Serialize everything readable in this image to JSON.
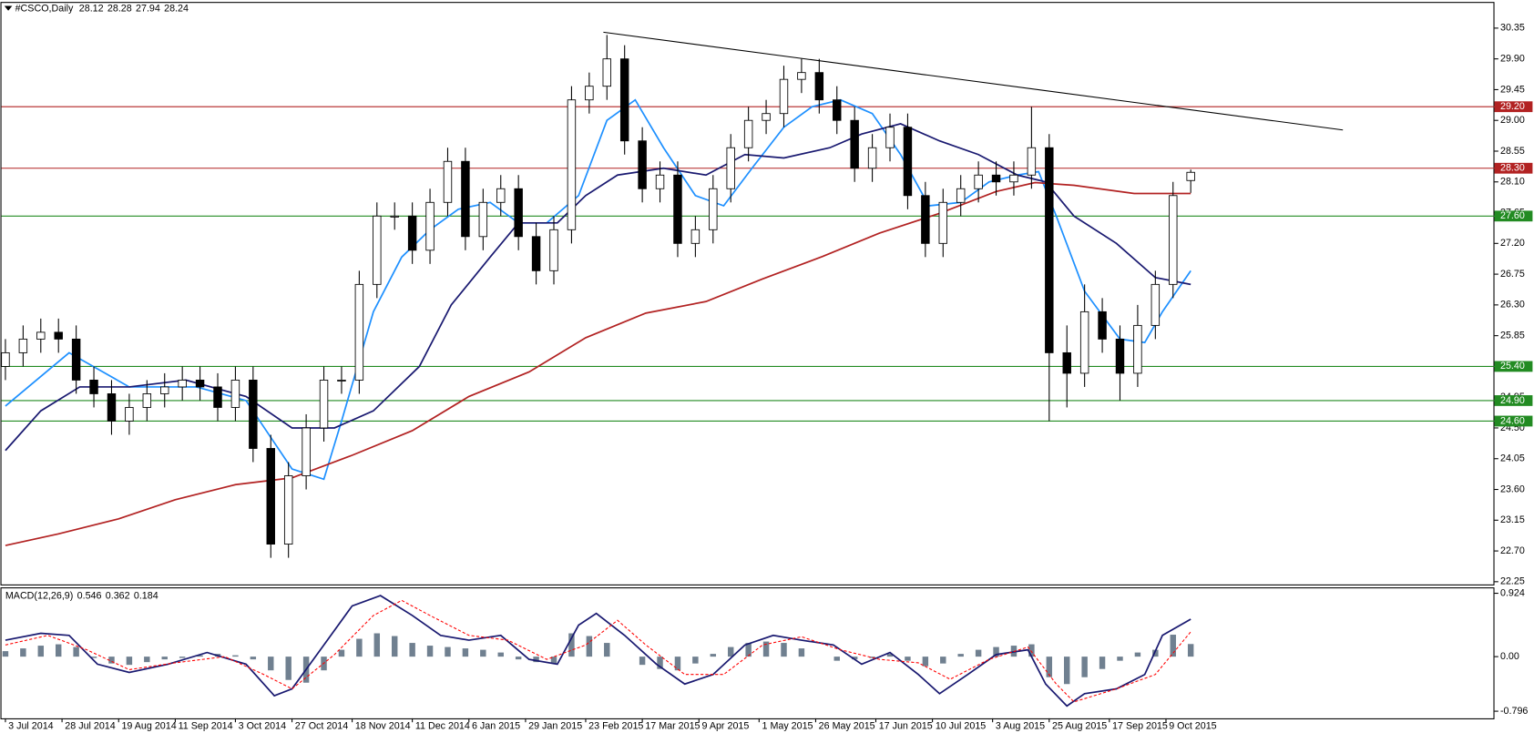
{
  "chart_data": [
    {
      "type": "candlestick",
      "title": "#CSCO,Daily",
      "xlim": [
        -1.4,
        420
      ],
      "ylim": [
        22.21,
        30.69
      ],
      "yticks": [
        30.35,
        {
          "value": 29.9,
          "label": "29.90"
        },
        29.45,
        {
          "value": 29,
          "label": "29.00"
        },
        28.55,
        {
          "value": 28.1,
          "label": "28.10"
        },
        27.65,
        {
          "value": 27.2,
          "label": "27.20"
        },
        26.75,
        {
          "value": 26.3,
          "label": "26.30"
        },
        25.85,
        {
          "value": 25.4,
          "label": "25.40"
        },
        24.95,
        {
          "value": 24.5,
          "label": "24.50"
        },
        24.05,
        {
          "value": 23.6,
          "label": "23.60"
        },
        23.15,
        {
          "value": 22.7,
          "label": "22.70"
        },
        22.25
      ],
      "x": [
        0,
        5,
        10,
        15,
        20,
        25,
        30,
        35,
        40,
        45,
        50,
        55,
        60,
        65,
        70,
        75,
        80,
        85,
        90,
        95,
        100,
        105,
        110,
        115,
        120,
        125,
        130,
        135,
        140,
        145,
        150,
        155,
        160,
        165,
        170,
        175,
        180,
        185,
        190,
        195,
        200,
        205,
        210,
        215,
        220,
        225,
        230,
        235,
        240,
        245,
        250,
        255,
        260,
        265,
        270,
        275,
        280,
        285,
        290,
        295,
        300,
        305,
        310,
        315,
        320,
        325,
        330,
        335
      ],
      "open": [
        25.4,
        25.6,
        25.8,
        25.9,
        25.8,
        25.2,
        25.0,
        24.6,
        24.8,
        25.0,
        25.1,
        25.2,
        25.1,
        24.8,
        25.2,
        24.2,
        22.8,
        23.8,
        24.5,
        25.2,
        25.2,
        26.6,
        27.6,
        27.6,
        27.1,
        27.8,
        28.4,
        27.3,
        27.8,
        28.0,
        27.3,
        26.8,
        27.4,
        29.3,
        29.5,
        29.9,
        28.7,
        28.0,
        28.2,
        27.2,
        27.4,
        28.0,
        28.6,
        29.0,
        29.1,
        29.6,
        29.7,
        29.3,
        29.0,
        28.3,
        28.6,
        28.9,
        27.9,
        27.2,
        27.8,
        28.0,
        28.2,
        28.1,
        28.2,
        28.6,
        25.6,
        25.3,
        26.2,
        25.8,
        25.3,
        26.0,
        26.6,
        28.12
      ],
      "high": [
        25.8,
        26.0,
        26.1,
        26.1,
        26.0,
        25.4,
        25.2,
        25.0,
        25.2,
        25.3,
        25.4,
        25.4,
        25.3,
        25.4,
        25.4,
        24.4,
        24.0,
        24.7,
        25.4,
        25.4,
        26.8,
        27.8,
        27.8,
        27.8,
        28.0,
        28.6,
        28.6,
        28.0,
        28.2,
        28.2,
        27.5,
        27.6,
        29.5,
        29.7,
        30.25,
        30.1,
        28.9,
        28.4,
        28.4,
        27.6,
        28.2,
        28.8,
        29.2,
        29.3,
        29.8,
        29.9,
        29.9,
        29.5,
        29.2,
        28.8,
        29.1,
        29.1,
        28.1,
        28.0,
        28.2,
        28.4,
        28.4,
        28.4,
        29.2,
        28.8,
        26.0,
        26.6,
        26.4,
        26.0,
        26.3,
        26.8,
        28.1,
        28.28
      ],
      "low": [
        25.2,
        25.4,
        25.6,
        25.6,
        25.0,
        24.8,
        24.4,
        24.4,
        24.6,
        24.8,
        24.9,
        24.9,
        24.6,
        24.6,
        24.0,
        22.6,
        22.6,
        23.6,
        24.3,
        25.0,
        25.0,
        26.4,
        27.4,
        26.9,
        26.9,
        27.6,
        27.1,
        27.1,
        27.6,
        27.1,
        26.6,
        26.6,
        27.2,
        29.1,
        29.3,
        28.5,
        27.8,
        27.8,
        27.0,
        27.0,
        27.2,
        27.8,
        28.4,
        28.8,
        28.9,
        29.4,
        29.1,
        28.8,
        28.1,
        28.1,
        28.4,
        27.7,
        27.0,
        27.0,
        27.6,
        27.8,
        27.9,
        27.9,
        28.0,
        24.6,
        24.8,
        25.1,
        25.6,
        24.9,
        25.1,
        25.8,
        26.4,
        27.94
      ],
      "close": [
        25.6,
        25.8,
        25.9,
        25.8,
        25.2,
        25.0,
        24.6,
        24.8,
        25.0,
        25.1,
        25.2,
        25.1,
        24.8,
        25.2,
        24.2,
        22.8,
        23.8,
        24.5,
        25.2,
        25.2,
        26.6,
        27.6,
        27.6,
        27.1,
        27.8,
        28.4,
        27.3,
        27.8,
        28.0,
        27.3,
        26.8,
        27.4,
        29.3,
        29.5,
        29.9,
        28.7,
        28.0,
        28.2,
        27.2,
        27.4,
        28.0,
        28.6,
        29.0,
        29.1,
        29.6,
        29.7,
        29.3,
        29.0,
        28.3,
        28.6,
        28.9,
        27.9,
        27.2,
        27.8,
        28.0,
        28.2,
        28.1,
        28.2,
        28.6,
        25.6,
        25.3,
        26.2,
        25.8,
        25.3,
        26.0,
        26.6,
        27.9,
        28.24
      ],
      "series": [
        {
          "color": "#1e90ff",
          "x": [
            0,
            18,
            35,
            54,
            68,
            81,
            90,
            95,
            104,
            112,
            120,
            128,
            137,
            145,
            153,
            162,
            170,
            178,
            186,
            195,
            203,
            211,
            220,
            228,
            236,
            245,
            253,
            261,
            270,
            278,
            286,
            292,
            297,
            305,
            315,
            322,
            327,
            335
          ],
          "values": [
            24.82,
            25.6,
            25.1,
            25.1,
            24.9,
            23.9,
            23.75,
            24.6,
            26.2,
            27.0,
            27.4,
            27.7,
            27.8,
            27.5,
            27.5,
            27.9,
            29.0,
            29.3,
            28.6,
            27.9,
            27.75,
            28.3,
            28.9,
            29.2,
            29.3,
            29.1,
            28.5,
            27.75,
            27.8,
            28.1,
            28.2,
            28.25,
            27.6,
            26.5,
            25.8,
            25.75,
            26.2,
            26.8
          ]
        },
        {
          "color": "#191970",
          "x": [
            0,
            10,
            21,
            35,
            51,
            68,
            81,
            93,
            104,
            117,
            126,
            137,
            145,
            156,
            164,
            173,
            186,
            198,
            209,
            220,
            233,
            242,
            253,
            264,
            275,
            286,
            294,
            302,
            314,
            325,
            335
          ],
          "values": [
            24.17,
            24.75,
            25.1,
            25.1,
            25.2,
            24.96,
            24.5,
            24.5,
            24.75,
            25.4,
            26.3,
            27.0,
            27.5,
            27.5,
            27.9,
            28.2,
            28.3,
            28.2,
            28.5,
            28.45,
            28.6,
            28.8,
            28.95,
            28.7,
            28.5,
            28.2,
            28.1,
            27.6,
            27.2,
            26.7,
            26.6
          ]
        },
        {
          "color": "#b22222",
          "x": [
            0,
            15,
            32,
            48,
            65,
            81,
            98,
            115,
            131,
            148,
            164,
            181,
            198,
            214,
            231,
            247,
            264,
            280,
            291,
            302,
            319,
            335
          ],
          "values": [
            22.78,
            22.95,
            23.17,
            23.45,
            23.67,
            23.77,
            24.1,
            24.46,
            24.96,
            25.32,
            25.82,
            26.18,
            26.35,
            26.68,
            27.01,
            27.35,
            27.64,
            27.96,
            28.09,
            28.05,
            27.93,
            27.93
          ]
        }
      ],
      "levels": [
        {
          "value": 29.2,
          "label": "29.20",
          "color": "#b22222"
        },
        {
          "value": 28.3,
          "label": "28.30",
          "color": "#b22222"
        },
        {
          "value": 27.6,
          "label": "27.60",
          "color": "#228b22"
        },
        {
          "value": 25.4,
          "label": "25.40",
          "color": "#228b22"
        },
        {
          "value": 24.9,
          "label": "24.90",
          "color": "#228b22"
        },
        {
          "value": 24.6,
          "label": "24.60",
          "color": "#228b22"
        }
      ],
      "trendline": {
        "color": "#000000",
        "x": [
          169,
          378
        ],
        "values": [
          30.29,
          28.86
        ]
      }
    },
    {
      "type": "macd",
      "title": "MACD(12,26,9)",
      "xlim": [
        -1.4,
        420
      ],
      "ylim": [
        -0.9,
        1.01
      ],
      "yticks": [
        0.924,
        {
          "value": 0,
          "label": "0.00"
        },
        -0.796
      ],
      "xticks": [
        {
          "value": 0,
          "label": "3 Jul 2014"
        },
        {
          "value": 16,
          "label": "28 Jul 2014"
        },
        {
          "value": 32,
          "label": "19 Aug 2014"
        },
        {
          "value": 48,
          "label": "11 Sep 2014"
        },
        {
          "value": 65,
          "label": "3 Oct 2014"
        },
        {
          "value": 81,
          "label": "27 Oct 2014"
        },
        {
          "value": 98,
          "label": "18 Nov 2014"
        },
        {
          "value": 115,
          "label": "11 Dec 2014"
        },
        {
          "value": 131,
          "label": "6 Jan 2015"
        },
        {
          "value": 147,
          "label": "29 Jan 2015"
        },
        {
          "value": 164,
          "label": "23 Feb 2015"
        },
        {
          "value": 180,
          "label": "17 Mar 2015"
        },
        {
          "value": 196,
          "label": "9 Apr 2015"
        },
        {
          "value": 213,
          "label": "1 May 2015"
        },
        {
          "value": 229,
          "label": "26 May 2015"
        },
        {
          "value": 246,
          "label": "17 Jun 2015"
        },
        {
          "value": 262,
          "label": "10 Jul 2015"
        },
        {
          "value": 279,
          "label": "3 Aug 2015"
        },
        {
          "value": 295,
          "label": "25 Aug 2015"
        },
        {
          "value": 312,
          "label": "17 Sep 2015"
        },
        {
          "value": 328,
          "label": "9 Oct 2015"
        }
      ],
      "x": [
        0,
        5,
        10,
        15,
        20,
        25,
        30,
        35,
        40,
        45,
        50,
        55,
        60,
        65,
        70,
        75,
        80,
        85,
        90,
        95,
        100,
        105,
        110,
        115,
        120,
        125,
        130,
        135,
        140,
        145,
        150,
        155,
        160,
        165,
        170,
        175,
        180,
        185,
        190,
        195,
        200,
        205,
        210,
        215,
        220,
        225,
        230,
        235,
        240,
        245,
        250,
        255,
        260,
        265,
        270,
        275,
        280,
        285,
        290,
        295,
        300,
        305,
        310,
        315,
        320,
        325,
        330,
        335
      ],
      "values": [
        0.08,
        0.12,
        0.16,
        0.18,
        0.14,
        -0.02,
        -0.1,
        -0.12,
        -0.08,
        -0.04,
        -0.02,
        0.02,
        0.04,
        0.02,
        -0.04,
        -0.2,
        -0.34,
        -0.38,
        -0.2,
        0.1,
        0.26,
        0.34,
        0.3,
        0.2,
        0.16,
        0.14,
        0.12,
        0.1,
        0.06,
        -0.04,
        -0.08,
        -0.1,
        0.34,
        0.3,
        0.2,
        0.0,
        -0.12,
        -0.18,
        -0.2,
        -0.1,
        0.04,
        0.14,
        0.2,
        0.22,
        0.2,
        0.12,
        0.0,
        -0.06,
        -0.04,
        -0.02,
        0.04,
        -0.06,
        -0.14,
        -0.1,
        0.04,
        0.1,
        0.14,
        0.16,
        0.18,
        -0.3,
        -0.4,
        -0.3,
        -0.18,
        -0.06,
        0.06,
        0.1,
        0.32,
        0.184
      ],
      "color": "#708090",
      "series": [
        {
          "color": "#191970",
          "x": [
            0,
            10,
            18,
            26,
            35,
            46,
            57,
            68,
            76,
            81,
            90,
            98,
            106,
            115,
            123,
            131,
            140,
            148,
            156,
            162,
            167,
            175,
            184,
            192,
            200,
            209,
            217,
            225,
            234,
            242,
            250,
            258,
            264,
            272,
            280,
            289,
            294,
            300,
            305,
            314,
            322,
            327,
            335
          ],
          "values": [
            0.24,
            0.34,
            0.31,
            -0.11,
            -0.23,
            -0.11,
            0.06,
            -0.11,
            -0.57,
            -0.47,
            0.17,
            0.74,
            0.89,
            0.6,
            0.31,
            0.24,
            0.31,
            -0.04,
            -0.11,
            0.46,
            0.63,
            0.31,
            -0.11,
            -0.4,
            -0.26,
            0.17,
            0.31,
            0.24,
            0.17,
            -0.11,
            0.06,
            -0.26,
            -0.54,
            -0.26,
            0.03,
            0.1,
            -0.4,
            -0.72,
            -0.54,
            -0.47,
            -0.26,
            0.31,
            0.546
          ]
        },
        {
          "color": "#ff0000",
          "dashed": true,
          "x": [
            0,
            12,
            23,
            35,
            48,
            62,
            73,
            81,
            93,
            104,
            112,
            120,
            131,
            142,
            153,
            164,
            173,
            181,
            192,
            203,
            214,
            225,
            236,
            247,
            258,
            267,
            278,
            289,
            297,
            302,
            314,
            325,
            335
          ],
          "values": [
            0.17,
            0.31,
            0.1,
            -0.19,
            -0.09,
            0,
            -0.26,
            -0.47,
            0.03,
            0.6,
            0.82,
            0.6,
            0.31,
            0.24,
            -0.04,
            0.17,
            0.53,
            0.17,
            -0.26,
            -0.26,
            0.17,
            0.29,
            0.1,
            -0.04,
            -0.09,
            -0.33,
            -0.04,
            0.14,
            -0.4,
            -0.66,
            -0.47,
            -0.26,
            0.362
          ]
        }
      ]
    }
  ]
}
